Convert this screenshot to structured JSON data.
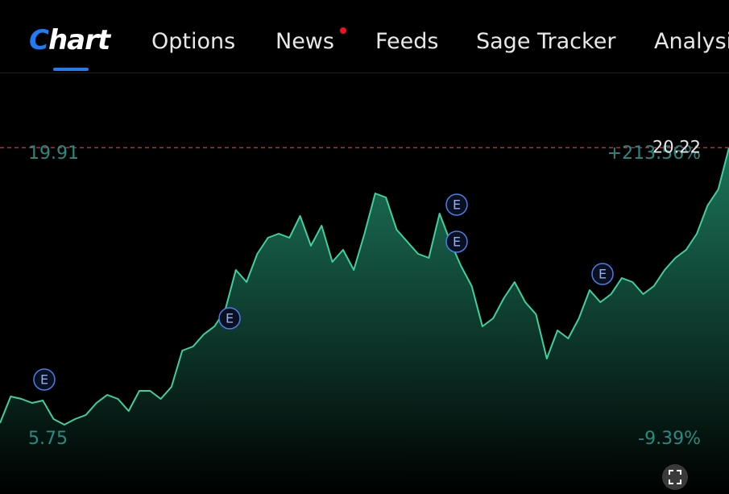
{
  "header": {
    "logo": "Chart",
    "nav": [
      "Options",
      "News",
      "Feeds",
      "Sage Tracker",
      "Analysis"
    ]
  },
  "chart_data": {
    "type": "line",
    "series": [
      {
        "color": "#3fd0a0",
        "values": [
          6.55,
          7.87,
          7.75,
          7.55,
          7.67,
          6.75,
          6.47,
          6.75,
          6.95,
          7.55,
          7.95,
          7.75,
          7.15,
          8.15,
          8.15,
          7.75,
          8.35,
          10.15,
          10.35,
          10.95,
          11.35,
          12.15,
          14.15,
          13.55,
          14.95,
          15.75,
          15.95,
          15.75,
          16.83,
          15.35,
          16.35,
          14.55,
          15.15,
          14.15,
          15.95,
          17.95,
          17.75,
          16.15,
          15.55,
          14.95,
          14.75,
          16.95,
          15.55,
          14.35,
          13.35,
          11.35,
          11.75,
          12.75,
          13.55,
          12.55,
          11.95,
          9.75,
          11.15,
          10.75,
          11.75,
          13.15,
          12.55,
          12.95,
          13.75,
          13.55,
          12.95,
          13.35,
          14.15,
          14.75,
          15.15,
          15.95,
          17.35,
          18.15,
          20.22
        ]
      }
    ],
    "ylim": [
      3.03,
      23.95
    ],
    "yticks": [
      5.75,
      19.91
    ],
    "change_labels": [
      "+213.56%",
      "-9.39%"
    ],
    "current_price": 20.22,
    "event_markers": [
      "E",
      "E",
      "E",
      "E",
      "E"
    ]
  }
}
